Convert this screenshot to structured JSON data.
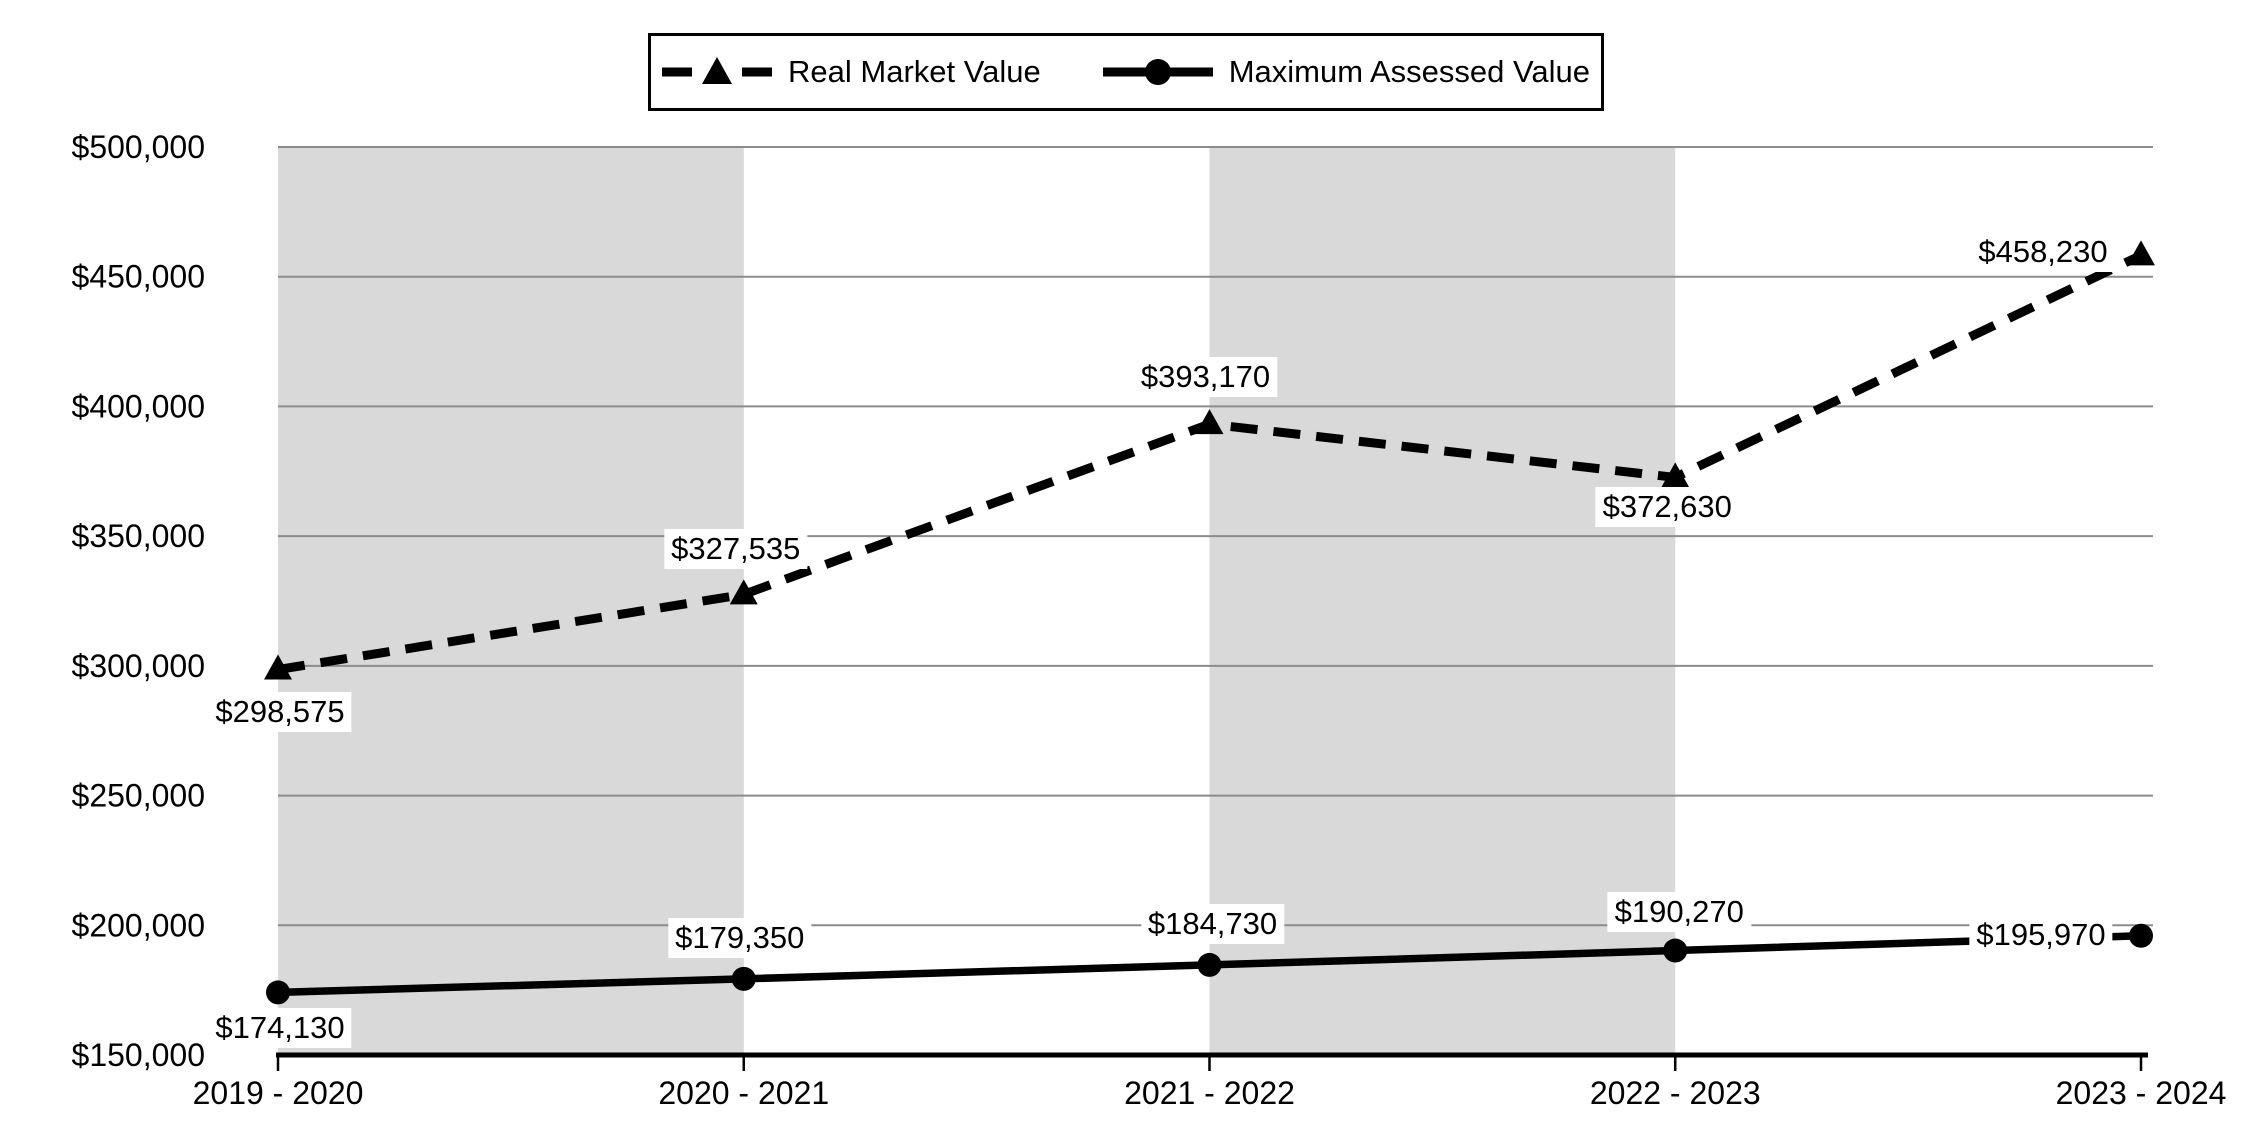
{
  "chart_data": {
    "type": "line",
    "categories": [
      "2019 - 2020",
      "2020 - 2021",
      "2021 - 2022",
      "2022 - 2023",
      "2023 - 2024"
    ],
    "series": [
      {
        "name": "Real Market Value",
        "line_style": "dashed",
        "marker": "triangle",
        "values": [
          298575,
          327535,
          393170,
          372630,
          458230
        ],
        "data_labels": [
          "$298,575",
          "$327,535",
          "$393,170",
          "$372,630",
          "$458,230"
        ]
      },
      {
        "name": "Maximum Assessed Value",
        "line_style": "solid",
        "marker": "circle",
        "values": [
          174130,
          179350,
          184730,
          190270,
          195970
        ],
        "data_labels": [
          "$174,130",
          "$179,350",
          "$184,730",
          "$190,270",
          "$195,970"
        ]
      }
    ],
    "y_axis": {
      "min": 150000,
      "max": 500000,
      "step": 50000,
      "tick_labels": [
        "$150,000",
        "$200,000",
        "$250,000",
        "$300,000",
        "$350,000",
        "$400,000",
        "$450,000",
        "$500,000"
      ]
    },
    "x_axis": {
      "tick_labels": [
        "2019 - 2020",
        "2020 - 2021",
        "2021 - 2022",
        "2022 - 2023",
        "2023 - 2024"
      ]
    },
    "legend": {
      "position": "top",
      "entries": [
        "Real Market Value",
        "Maximum Assessed Value"
      ]
    },
    "grid": true,
    "plot_bands": {
      "band_color": "#D9D9D9",
      "between_category_indexes": [
        [
          0,
          1
        ],
        [
          2,
          3
        ]
      ]
    },
    "colors": {
      "series": "#000000",
      "gridline": "#8C8C8C",
      "axis": "#000000",
      "background": "#FFFFFF",
      "label_background": "#FFFFFF"
    }
  }
}
